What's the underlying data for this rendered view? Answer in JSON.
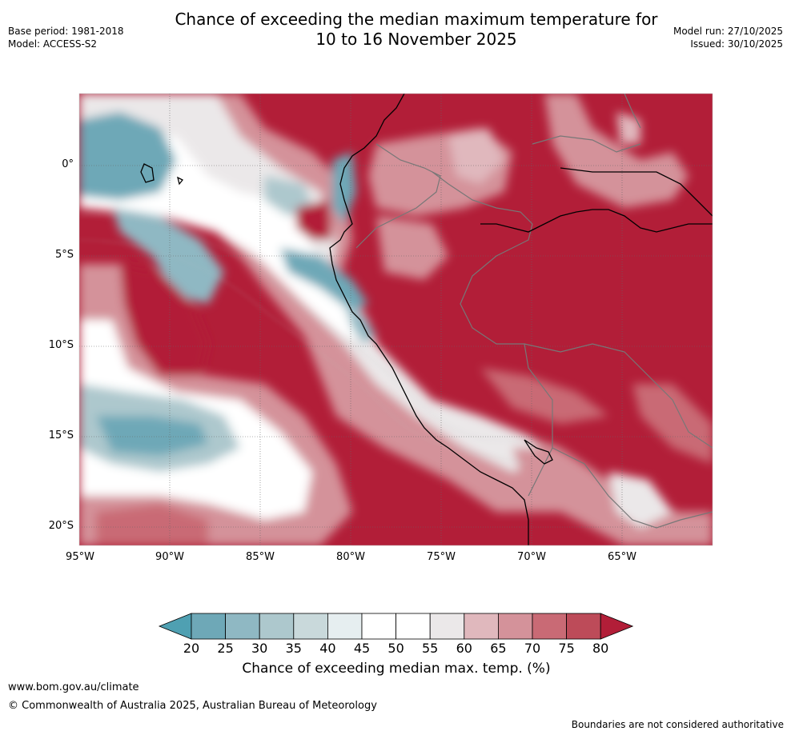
{
  "header": {
    "title_line1": "Chance of exceeding the median maximum temperature for",
    "title_line2": "10 to 16 November 2025",
    "base_period": "Base period: 1981-2018",
    "model": "Model: ACCESS-S2",
    "model_run": "Model run: 27/10/2025",
    "issued": "Issued: 30/10/2025"
  },
  "map": {
    "lat_labels": [
      "0°",
      "5°S",
      "10°S",
      "15°S",
      "20°S"
    ],
    "lon_labels": [
      "95°W",
      "90°W",
      "85°W",
      "80°W",
      "75°W",
      "70°W",
      "65°W"
    ],
    "region": "Eastern tropical Pacific and western South America (Peru)"
  },
  "colorbar": {
    "ticks": [
      "20",
      "25",
      "30",
      "35",
      "40",
      "45",
      "50",
      "55",
      "60",
      "65",
      "70",
      "75",
      "80"
    ],
    "label": "Chance of exceeding median max. temp. (%)",
    "colors": [
      "#4fa0b2",
      "#6ea8b7",
      "#8fb8c3",
      "#adc8cd",
      "#c9d9db",
      "#e6eef0",
      "#ffffff",
      "#ffffff",
      "#ebe8e9",
      "#e0b8bd",
      "#d4929a",
      "#c96a75",
      "#bd4b59",
      "#b21e38"
    ]
  },
  "footer": {
    "website": "www.bom.gov.au/climate",
    "copyright": "© Commonwealth of Australia 2025, Australian Bureau of Meteorology",
    "disclaimer": "Boundaries are not considered authoritative"
  }
}
